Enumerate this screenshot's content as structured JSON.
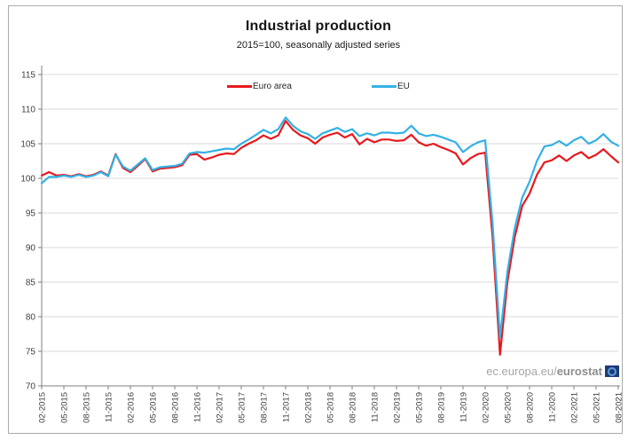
{
  "chart": {
    "title": "Industrial production",
    "subtitle": "2015=100, seasonally adjusted series",
    "watermark": {
      "prefix": "ec.europa.eu/",
      "bold": "eurostat"
    }
  },
  "chart_data": {
    "type": "line",
    "title": "Industrial production",
    "subtitle": "2015=100, seasonally adjusted series",
    "x_frequency": "monthly",
    "x_start": "02-2015",
    "x_end": "08-2021",
    "x_tick_labels": [
      "02-2015",
      "05-2015",
      "08-2015",
      "11-2015",
      "02-2016",
      "05-2016",
      "08-2016",
      "11-2016",
      "02-2017",
      "05-2017",
      "08-2017",
      "11-2017",
      "02-2018",
      "05-2018",
      "08-2018",
      "11-2018",
      "02-2019",
      "05-2019",
      "08-2019",
      "11-2019",
      "02-2020",
      "05-2020",
      "08-2020",
      "11-2020",
      "02-2021",
      "05-2021",
      "08-2021"
    ],
    "x_tick_every_n_points": 3,
    "y_ticks": [
      70,
      75,
      80,
      85,
      90,
      95,
      100,
      105,
      110,
      115
    ],
    "ylim": [
      70,
      115
    ],
    "grid": "horizontal",
    "legend_position": "top-center-inside",
    "colors": {
      "euro_area": "#e8191d",
      "eu": "#33b1e5",
      "gridline": "#d9d9d9",
      "axis": "#7f7f7f",
      "tick_text": "#3f3f3f",
      "logo_navy": "#1e3a78"
    },
    "series": [
      {
        "name": "Euro area",
        "color": "#e8191d",
        "values": [
          100.4,
          100.9,
          100.4,
          100.5,
          100.3,
          100.6,
          100.3,
          100.5,
          101.0,
          100.4,
          103.5,
          101.5,
          100.9,
          101.8,
          102.8,
          101.0,
          101.4,
          101.5,
          101.6,
          101.9,
          103.4,
          103.5,
          102.7,
          103.0,
          103.4,
          103.6,
          103.5,
          104.4,
          105.0,
          105.5,
          106.2,
          105.7,
          106.2,
          108.3,
          107.0,
          106.2,
          105.8,
          105.0,
          105.9,
          106.3,
          106.6,
          105.9,
          106.4,
          104.9,
          105.7,
          105.2,
          105.6,
          105.6,
          105.4,
          105.5,
          106.3,
          105.2,
          104.7,
          105.0,
          104.5,
          104.1,
          103.6,
          102.0,
          102.9,
          103.5,
          103.7,
          91.5,
          74.5,
          85.0,
          91.5,
          96.0,
          97.8,
          100.5,
          102.3,
          102.6,
          103.3,
          102.5,
          103.3,
          103.8,
          102.9,
          103.4,
          104.2,
          103.2,
          102.3
        ]
      },
      {
        "name": "EU",
        "color": "#33b1e5",
        "values": [
          99.3,
          100.2,
          100.2,
          100.4,
          100.2,
          100.5,
          100.2,
          100.4,
          100.9,
          100.3,
          103.4,
          101.7,
          101.1,
          102.0,
          102.9,
          101.2,
          101.6,
          101.7,
          101.8,
          102.1,
          103.6,
          103.8,
          103.7,
          103.9,
          104.1,
          104.3,
          104.2,
          105.0,
          105.6,
          106.3,
          107.0,
          106.5,
          107.1,
          108.8,
          107.6,
          106.8,
          106.4,
          105.7,
          106.5,
          106.9,
          107.3,
          106.7,
          107.1,
          106.1,
          106.5,
          106.2,
          106.6,
          106.6,
          106.5,
          106.6,
          107.6,
          106.5,
          106.1,
          106.3,
          106.0,
          105.6,
          105.2,
          103.8,
          104.6,
          105.2,
          105.5,
          93.5,
          77.0,
          86.5,
          92.8,
          97.2,
          99.5,
          102.5,
          104.6,
          104.8,
          105.4,
          104.7,
          105.5,
          106.0,
          105.0,
          105.5,
          106.4,
          105.3,
          104.7
        ]
      }
    ]
  }
}
